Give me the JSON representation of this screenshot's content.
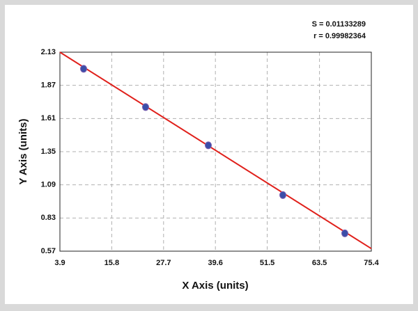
{
  "chart_data": {
    "type": "scatter",
    "annotations": [
      "S = 0.01133289",
      "r = 0.99982364"
    ],
    "x_label": "X Axis (units)",
    "y_label": "Y Axis (units)",
    "series": [
      {
        "x": [
          9.34,
          23.57,
          37.97,
          55.09,
          69.32
        ],
        "values": [
          2.0,
          1.7,
          1.4,
          1.01,
          0.71
        ],
        "color": "#3b4ea8"
      }
    ],
    "fit_line": {
      "x": [
        3.9,
        75.4
      ],
      "values": [
        2.13,
        0.59
      ],
      "color": "#e0201b"
    },
    "xlim": [
      3.9,
      75.4
    ],
    "xticks": [
      3.9,
      15.8,
      27.7,
      39.6,
      51.5,
      63.5,
      75.4
    ],
    "ylim": [
      0.57,
      2.13
    ],
    "yticks": [
      0.57,
      0.83,
      1.09,
      1.35,
      1.61,
      1.87,
      2.13
    ],
    "grid": true
  }
}
